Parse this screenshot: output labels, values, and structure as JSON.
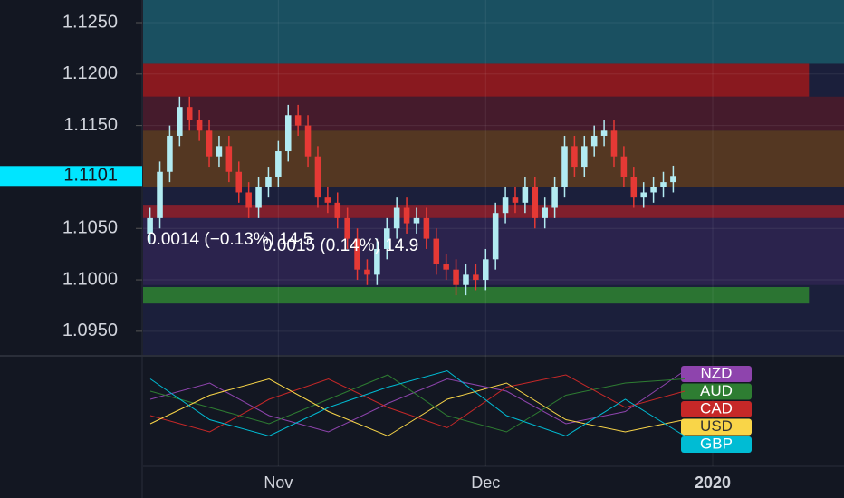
{
  "chart_data": {
    "type": "candlestick",
    "ylim": [
      1.0927,
      1.1272
    ],
    "yticks": [
      {
        "value": 1.125,
        "label": "1.1250"
      },
      {
        "value": 1.12,
        "label": "1.1200"
      },
      {
        "value": 1.115,
        "label": "1.1150"
      },
      {
        "value": 1.105,
        "label": "1.1050"
      },
      {
        "value": 1.1,
        "label": "1.1000"
      },
      {
        "value": 1.095,
        "label": "1.0950"
      }
    ],
    "xlim": [
      -0.7,
      70.3
    ],
    "xticks": [
      {
        "value": 13,
        "label": "Nov"
      },
      {
        "value": 34,
        "label": "Dec"
      },
      {
        "value": 57,
        "label": "2020"
      }
    ],
    "up_color": "#b2ebf2",
    "down_color": "#e53935",
    "open": [
      1.1045,
      1.106,
      1.1105,
      1.114,
      1.1168,
      1.1155,
      1.1145,
      1.112,
      1.113,
      1.1105,
      1.1085,
      1.107,
      1.109,
      1.11,
      1.1125,
      1.116,
      1.115,
      1.112,
      1.108,
      1.1075,
      1.106,
      1.104,
      1.101,
      1.1005,
      1.103,
      1.105,
      1.107,
      1.1055,
      1.106,
      1.104,
      1.1015,
      1.101,
      1.0995,
      1.1005,
      1.1,
      1.102,
      1.1065,
      1.108,
      1.1075,
      1.109,
      1.106,
      1.107,
      1.109,
      1.113,
      1.111,
      1.113,
      1.114,
      1.1145,
      1.112,
      1.11,
      1.108,
      1.1085,
      1.109,
      1.1095
    ],
    "high": [
      1.107,
      1.1115,
      1.115,
      1.1178,
      1.1178,
      1.1165,
      1.1155,
      1.114,
      1.114,
      1.1115,
      1.1095,
      1.11,
      1.111,
      1.1135,
      1.117,
      1.117,
      1.116,
      1.113,
      1.109,
      1.1085,
      1.107,
      1.105,
      1.102,
      1.104,
      1.106,
      1.108,
      1.108,
      1.107,
      1.107,
      1.105,
      1.1025,
      1.102,
      1.1015,
      1.1015,
      1.103,
      1.1075,
      1.109,
      1.109,
      1.11,
      1.11,
      1.108,
      1.11,
      1.114,
      1.114,
      1.114,
      1.115,
      1.1155,
      1.1155,
      1.113,
      1.111,
      1.1095,
      1.11,
      1.1105,
      1.1111
    ],
    "low": [
      1.1035,
      1.105,
      1.1095,
      1.113,
      1.1145,
      1.1135,
      1.111,
      1.111,
      1.1095,
      1.1075,
      1.106,
      1.106,
      1.108,
      1.109,
      1.1115,
      1.114,
      1.111,
      1.107,
      1.1065,
      1.105,
      1.103,
      1.1,
      1.0995,
      1.0995,
      1.102,
      1.104,
      1.1045,
      1.1045,
      1.103,
      1.1005,
      1.1,
      1.0985,
      1.0985,
      1.099,
      1.099,
      1.101,
      1.1055,
      1.1065,
      1.1065,
      1.105,
      1.105,
      1.106,
      1.108,
      1.11,
      1.11,
      1.112,
      1.113,
      1.111,
      1.109,
      1.107,
      1.107,
      1.1075,
      1.108,
      1.1085
    ],
    "close": [
      1.106,
      1.1105,
      1.114,
      1.1168,
      1.1155,
      1.1145,
      1.112,
      1.113,
      1.1105,
      1.1085,
      1.107,
      1.109,
      1.11,
      1.1125,
      1.116,
      1.115,
      1.112,
      1.108,
      1.1075,
      1.106,
      1.104,
      1.101,
      1.1005,
      1.103,
      1.105,
      1.107,
      1.1055,
      1.106,
      1.104,
      1.1015,
      1.101,
      1.0995,
      1.1005,
      1.1,
      1.102,
      1.1065,
      1.108,
      1.1075,
      1.109,
      1.106,
      1.107,
      1.109,
      1.113,
      1.111,
      1.113,
      1.114,
      1.1145,
      1.112,
      1.11,
      1.108,
      1.1085,
      1.109,
      1.1095,
      1.1101
    ],
    "zones": [
      {
        "from": 1.121,
        "to": 1.1272,
        "color": "#1b5566"
      },
      {
        "from": 1.1178,
        "to": 1.121,
        "color": "#96181d"
      },
      {
        "from": 1.1145,
        "to": 1.1178,
        "color": "#4a1b2b"
      },
      {
        "from": 1.109,
        "to": 1.1145,
        "color": "#5b3a20"
      },
      {
        "from": 1.106,
        "to": 1.1073,
        "color": "#8c1f2c"
      },
      {
        "from": 1.0995,
        "to": 1.106,
        "color": "#2d2450"
      },
      {
        "from": 1.0977,
        "to": 1.0993,
        "color": "#2e7d32"
      }
    ],
    "annotations": [
      "0.0014 (−0.13%) 14.5",
      "0.0015 (0.14%) 14.9"
    ],
    "oscillator": {
      "ylim": [
        0,
        100
      ],
      "series": [
        {
          "name": "NZD",
          "color": "#8e44ad",
          "values": [
            60,
            80,
            40,
            20,
            55,
            85,
            70,
            30,
            45,
            95
          ]
        },
        {
          "name": "AUD",
          "color": "#2e7d32",
          "values": [
            70,
            50,
            30,
            60,
            90,
            40,
            20,
            65,
            80,
            85
          ]
        },
        {
          "name": "CAD",
          "color": "#c62828",
          "values": [
            40,
            20,
            60,
            85,
            50,
            25,
            75,
            90,
            50,
            70
          ]
        },
        {
          "name": "USD",
          "color": "#f9d548",
          "values": [
            30,
            65,
            85,
            45,
            15,
            60,
            80,
            35,
            20,
            35
          ]
        },
        {
          "name": "GBP",
          "color": "#00bcd4",
          "values": [
            85,
            35,
            15,
            50,
            75,
            95,
            40,
            15,
            60,
            15
          ]
        }
      ]
    }
  }
}
